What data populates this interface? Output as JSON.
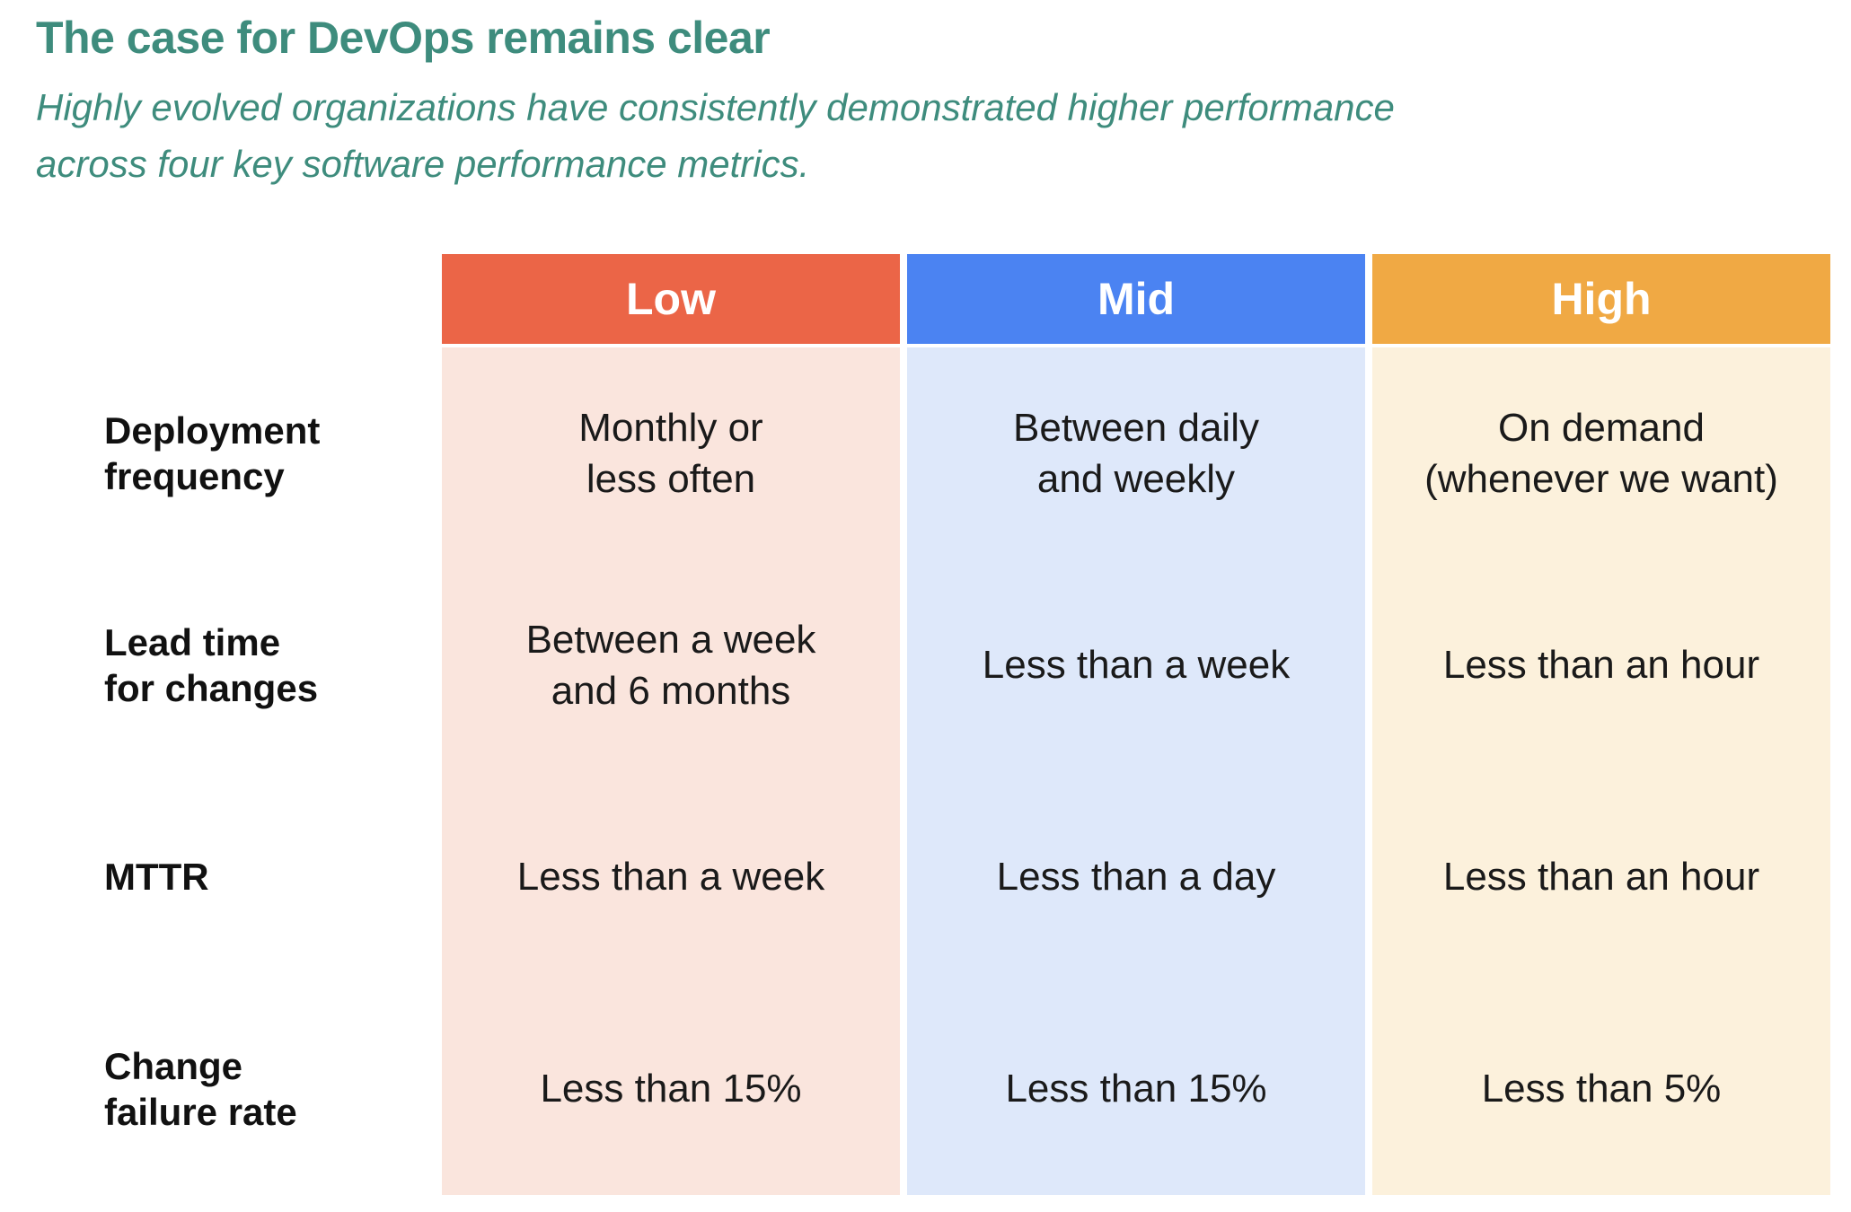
{
  "title": "The case for DevOps remains clear",
  "subtitle": "Highly evolved organizations have consistently demonstrated higher performance\nacross four key software performance metrics.",
  "colors": {
    "accent_teal": "#3E8C7D",
    "low_header": "#EB6547",
    "mid_header": "#4B83F2",
    "high_header": "#F0A944",
    "low_tint": "#FAE5DD",
    "mid_tint": "#DEE8FA",
    "high_tint": "#FCF1DC",
    "header_text": "#FFFFFF",
    "body_text": "#1A1A1A"
  },
  "table": {
    "headers": [
      {
        "label": "Low"
      },
      {
        "label": "Mid"
      },
      {
        "label": "High"
      }
    ],
    "rows": [
      {
        "label": "Deployment\nfrequency",
        "cells": [
          "Monthly or\nless often",
          "Between daily\nand weekly",
          "On demand\n(whenever we want)"
        ]
      },
      {
        "label": "Lead time\nfor changes",
        "cells": [
          "Between a week\nand 6 months",
          "Less than a week",
          "Less than an hour"
        ]
      },
      {
        "label": "MTTR",
        "cells": [
          "Less than a week",
          "Less than a day",
          "Less than an hour"
        ]
      },
      {
        "label": "Change\nfailure rate",
        "cells": [
          "Less than 15%",
          "Less than 15%",
          "Less than 5%"
        ]
      }
    ]
  },
  "chart_data": {
    "type": "table",
    "title": "The case for DevOps remains clear",
    "subtitle": "Highly evolved organizations have consistently demonstrated higher performance across four key software performance metrics.",
    "columns": [
      "Low",
      "Mid",
      "High"
    ],
    "row_labels": [
      "Deployment frequency",
      "Lead time for changes",
      "MTTR",
      "Change failure rate"
    ],
    "cells": [
      [
        "Monthly or less often",
        "Between daily and weekly",
        "On demand (whenever we want)"
      ],
      [
        "Between a week and 6 months",
        "Less than a week",
        "Less than an hour"
      ],
      [
        "Less than a week",
        "Less than a day",
        "Less than an hour"
      ],
      [
        "Less than 15%",
        "Less than 15%",
        "Less than 5%"
      ]
    ],
    "column_colors": [
      "#EB6547",
      "#4B83F2",
      "#F0A944"
    ],
    "column_tints": [
      "#FAE5DD",
      "#DEE8FA",
      "#FCF1DC"
    ]
  }
}
